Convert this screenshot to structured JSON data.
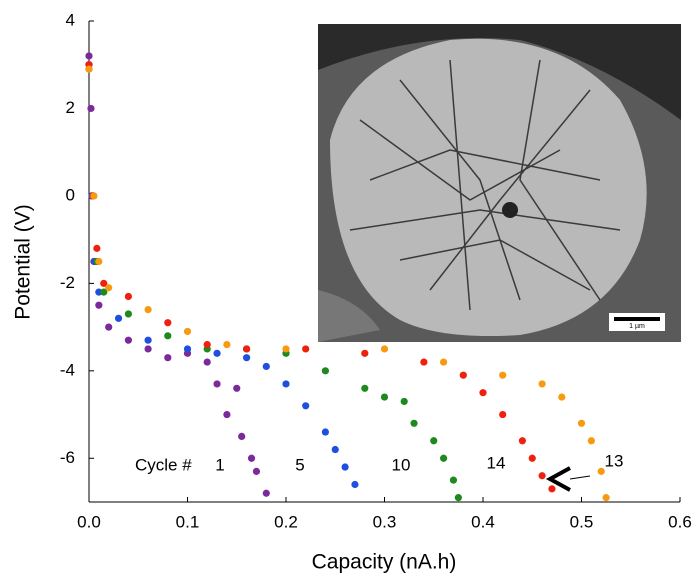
{
  "chart_data": {
    "type": "scatter",
    "x_label": "Capacity (nA.h)",
    "y_label": "Potential (V)",
    "annotation": "Cycle #",
    "scale_bar_label": "1 µm",
    "xlim": [
      0,
      0.6
    ],
    "ylim": [
      -7,
      4
    ],
    "xticks": [
      {
        "value": 0,
        "label": "0.0"
      },
      0.1,
      0.2,
      0.3,
      0.4,
      0.5,
      0.6
    ],
    "yticks": [
      -6,
      -4,
      -2,
      0,
      2,
      4
    ],
    "grid": false,
    "series": [
      {
        "name": "1",
        "color": "#7b2a9c",
        "x": [
          0,
          0.002,
          0.003,
          0.005,
          0.01,
          0.02,
          0.04,
          0.06,
          0.08,
          0.1,
          0.12,
          0.13,
          0.14,
          0.15,
          0.155,
          0.165,
          0.17,
          0.18
        ],
        "values": [
          3.2,
          2,
          0,
          -1.5,
          -2.5,
          -3,
          -3.3,
          -3.5,
          -3.7,
          -3.6,
          -3.8,
          -4.3,
          -5,
          -4.4,
          -5.5,
          -6,
          -6.3,
          -6.8
        ]
      },
      {
        "name": "5",
        "color": "#1f4fe0",
        "x": [
          0,
          0.003,
          0.006,
          0.01,
          0.03,
          0.06,
          0.1,
          0.13,
          0.16,
          0.18,
          0.2,
          0.22,
          0.24,
          0.25,
          0.26,
          0.27
        ],
        "values": [
          3,
          0,
          -1.5,
          -2.2,
          -2.8,
          -3.3,
          -3.5,
          -3.6,
          -3.7,
          -3.9,
          -4.3,
          -4.8,
          -5.4,
          -5.8,
          -6.2,
          -6.6
        ]
      },
      {
        "name": "10",
        "color": "#1e8a1e",
        "x": [
          0,
          0.004,
          0.008,
          0.015,
          0.04,
          0.08,
          0.12,
          0.16,
          0.2,
          0.24,
          0.28,
          0.3,
          0.32,
          0.33,
          0.35,
          0.36,
          0.37,
          0.375
        ],
        "values": [
          2.9,
          0,
          -1.5,
          -2.2,
          -2.7,
          -3.2,
          -3.5,
          -3.5,
          -3.6,
          -4,
          -4.4,
          -4.6,
          -4.7,
          -5.2,
          -5.6,
          -6,
          -6.5,
          -6.9
        ]
      },
      {
        "name": "14",
        "color": "#f0200f",
        "x": [
          0,
          0.004,
          0.008,
          0.015,
          0.04,
          0.08,
          0.12,
          0.16,
          0.22,
          0.28,
          0.34,
          0.38,
          0.4,
          0.42,
          0.44,
          0.45,
          0.46,
          0.47
        ],
        "values": [
          3,
          0,
          -1.2,
          -2,
          -2.3,
          -2.9,
          -3.4,
          -3.5,
          -3.5,
          -3.6,
          -3.8,
          -4.1,
          -4.5,
          -5,
          -5.6,
          -6,
          -6.4,
          -6.7
        ]
      },
      {
        "name": "13",
        "color": "#f79a10",
        "x": [
          0,
          0.005,
          0.01,
          0.02,
          0.06,
          0.1,
          0.14,
          0.2,
          0.3,
          0.36,
          0.42,
          0.46,
          0.48,
          0.5,
          0.51,
          0.52,
          0.525
        ],
        "values": [
          2.9,
          0,
          -1.5,
          -2.1,
          -2.6,
          -3.1,
          -3.4,
          -3.5,
          -3.5,
          -3.8,
          -4.1,
          -4.3,
          -4.6,
          -5.2,
          -5.6,
          -6.3,
          -6.9
        ]
      }
    ]
  }
}
